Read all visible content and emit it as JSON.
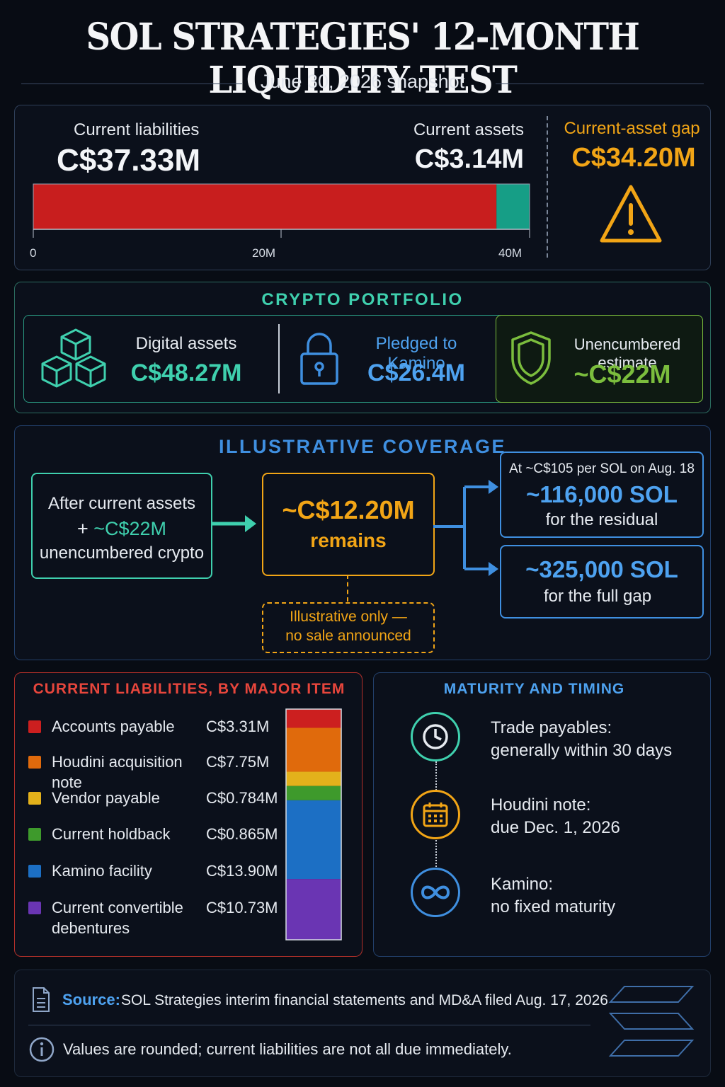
{
  "header": {
    "title": "SOL STRATEGIES' 12-MONTH LIQUIDITY TEST",
    "subtitle": "June 30, 2026 snapshot"
  },
  "gap_panel": {
    "liabilities_label": "Current liabilities",
    "liabilities_value": "C$37.33M",
    "liabilities_amount": 37.33,
    "assets_label": "Current assets",
    "assets_value": "C$3.14M",
    "assets_amount": 3.14,
    "axis_max": 40,
    "ticks": [
      "0",
      "20M",
      "40M"
    ],
    "gap_label": "Current-asset gap",
    "gap_value": "C$34.20M",
    "warning_icon": "warning-triangle-icon",
    "colors": {
      "liabilities": "#c81e1e",
      "assets": "#169e86",
      "gap": "#f2a516"
    }
  },
  "crypto": {
    "heading": "CRYPTO PORTFOLIO",
    "digital_label": "Digital assets",
    "digital_value": "C$48.27M",
    "pledged_label": "Pledged to Kamino",
    "pledged_value": "C$26.4M",
    "unencumbered_label": "Unencumbered estimate",
    "unencumbered_value": "~C$22M",
    "icons": [
      "cubes-icon",
      "padlock-icon",
      "shield-icon"
    ]
  },
  "coverage": {
    "heading": "ILLUSTRATIVE COVERAGE",
    "left_line1": "After current assets",
    "left_line2_prefix": "+ ",
    "left_line2_value": "~C$22M",
    "left_line3": "unencumbered crypto",
    "remains_value": "~C$12.20M",
    "remains_label": "remains",
    "note_line1": "Illustrative only —",
    "note_line2": "no sale announced",
    "residual_top": "At ~C$105 per SOL on Aug. 18",
    "residual_value": "~116,000 SOL",
    "residual_label": "for the residual",
    "full_value": "~325,000 SOL",
    "full_label": "for the full gap"
  },
  "liabilities_breakdown": {
    "heading": "CURRENT LIABILITIES, BY MAJOR ITEM",
    "items": [
      {
        "label": "Accounts payable",
        "value": "C$3.31M",
        "amount": 3.31,
        "color": "#cc1f1f"
      },
      {
        "label": "Houdini acquisition note",
        "value": "C$7.75M",
        "amount": 7.75,
        "color": "#e06a0c"
      },
      {
        "label": "Vendor payable",
        "value": "C$0.784M",
        "amount": 0.784,
        "color": "#e3b11b"
      },
      {
        "label": "Current holdback",
        "value": "C$0.865M",
        "amount": 0.865,
        "color": "#3e9a2c"
      },
      {
        "label": "Kamino facility",
        "value": "C$13.90M",
        "amount": 13.9,
        "color": "#1c6fc4"
      },
      {
        "label": "Current convertible debentures",
        "value": "C$10.73M",
        "amount": 10.73,
        "color": "#6a35b3"
      }
    ]
  },
  "maturity": {
    "heading": "MATURITY AND TIMING",
    "items": [
      {
        "icon": "clock-icon",
        "line1": "Trade payables:",
        "line2": "generally within 30 days",
        "color": "#3fd0ae"
      },
      {
        "icon": "calendar-icon",
        "line1": "Houdini note:",
        "line2": "due Dec. 1, 2026",
        "color": "#f2a516"
      },
      {
        "icon": "infinity-icon",
        "line1": "Kamino:",
        "line2": "no fixed maturity",
        "color": "#3f8fe0"
      }
    ]
  },
  "footer": {
    "source_label": "Source:",
    "source_text": "SOL Strategies interim financial statements and MD&A filed Aug. 17, 2026",
    "note": "Values are rounded; current liabilities are not all due immediately.",
    "icons": [
      "document-icon",
      "info-icon",
      "solana-logo-icon"
    ]
  }
}
